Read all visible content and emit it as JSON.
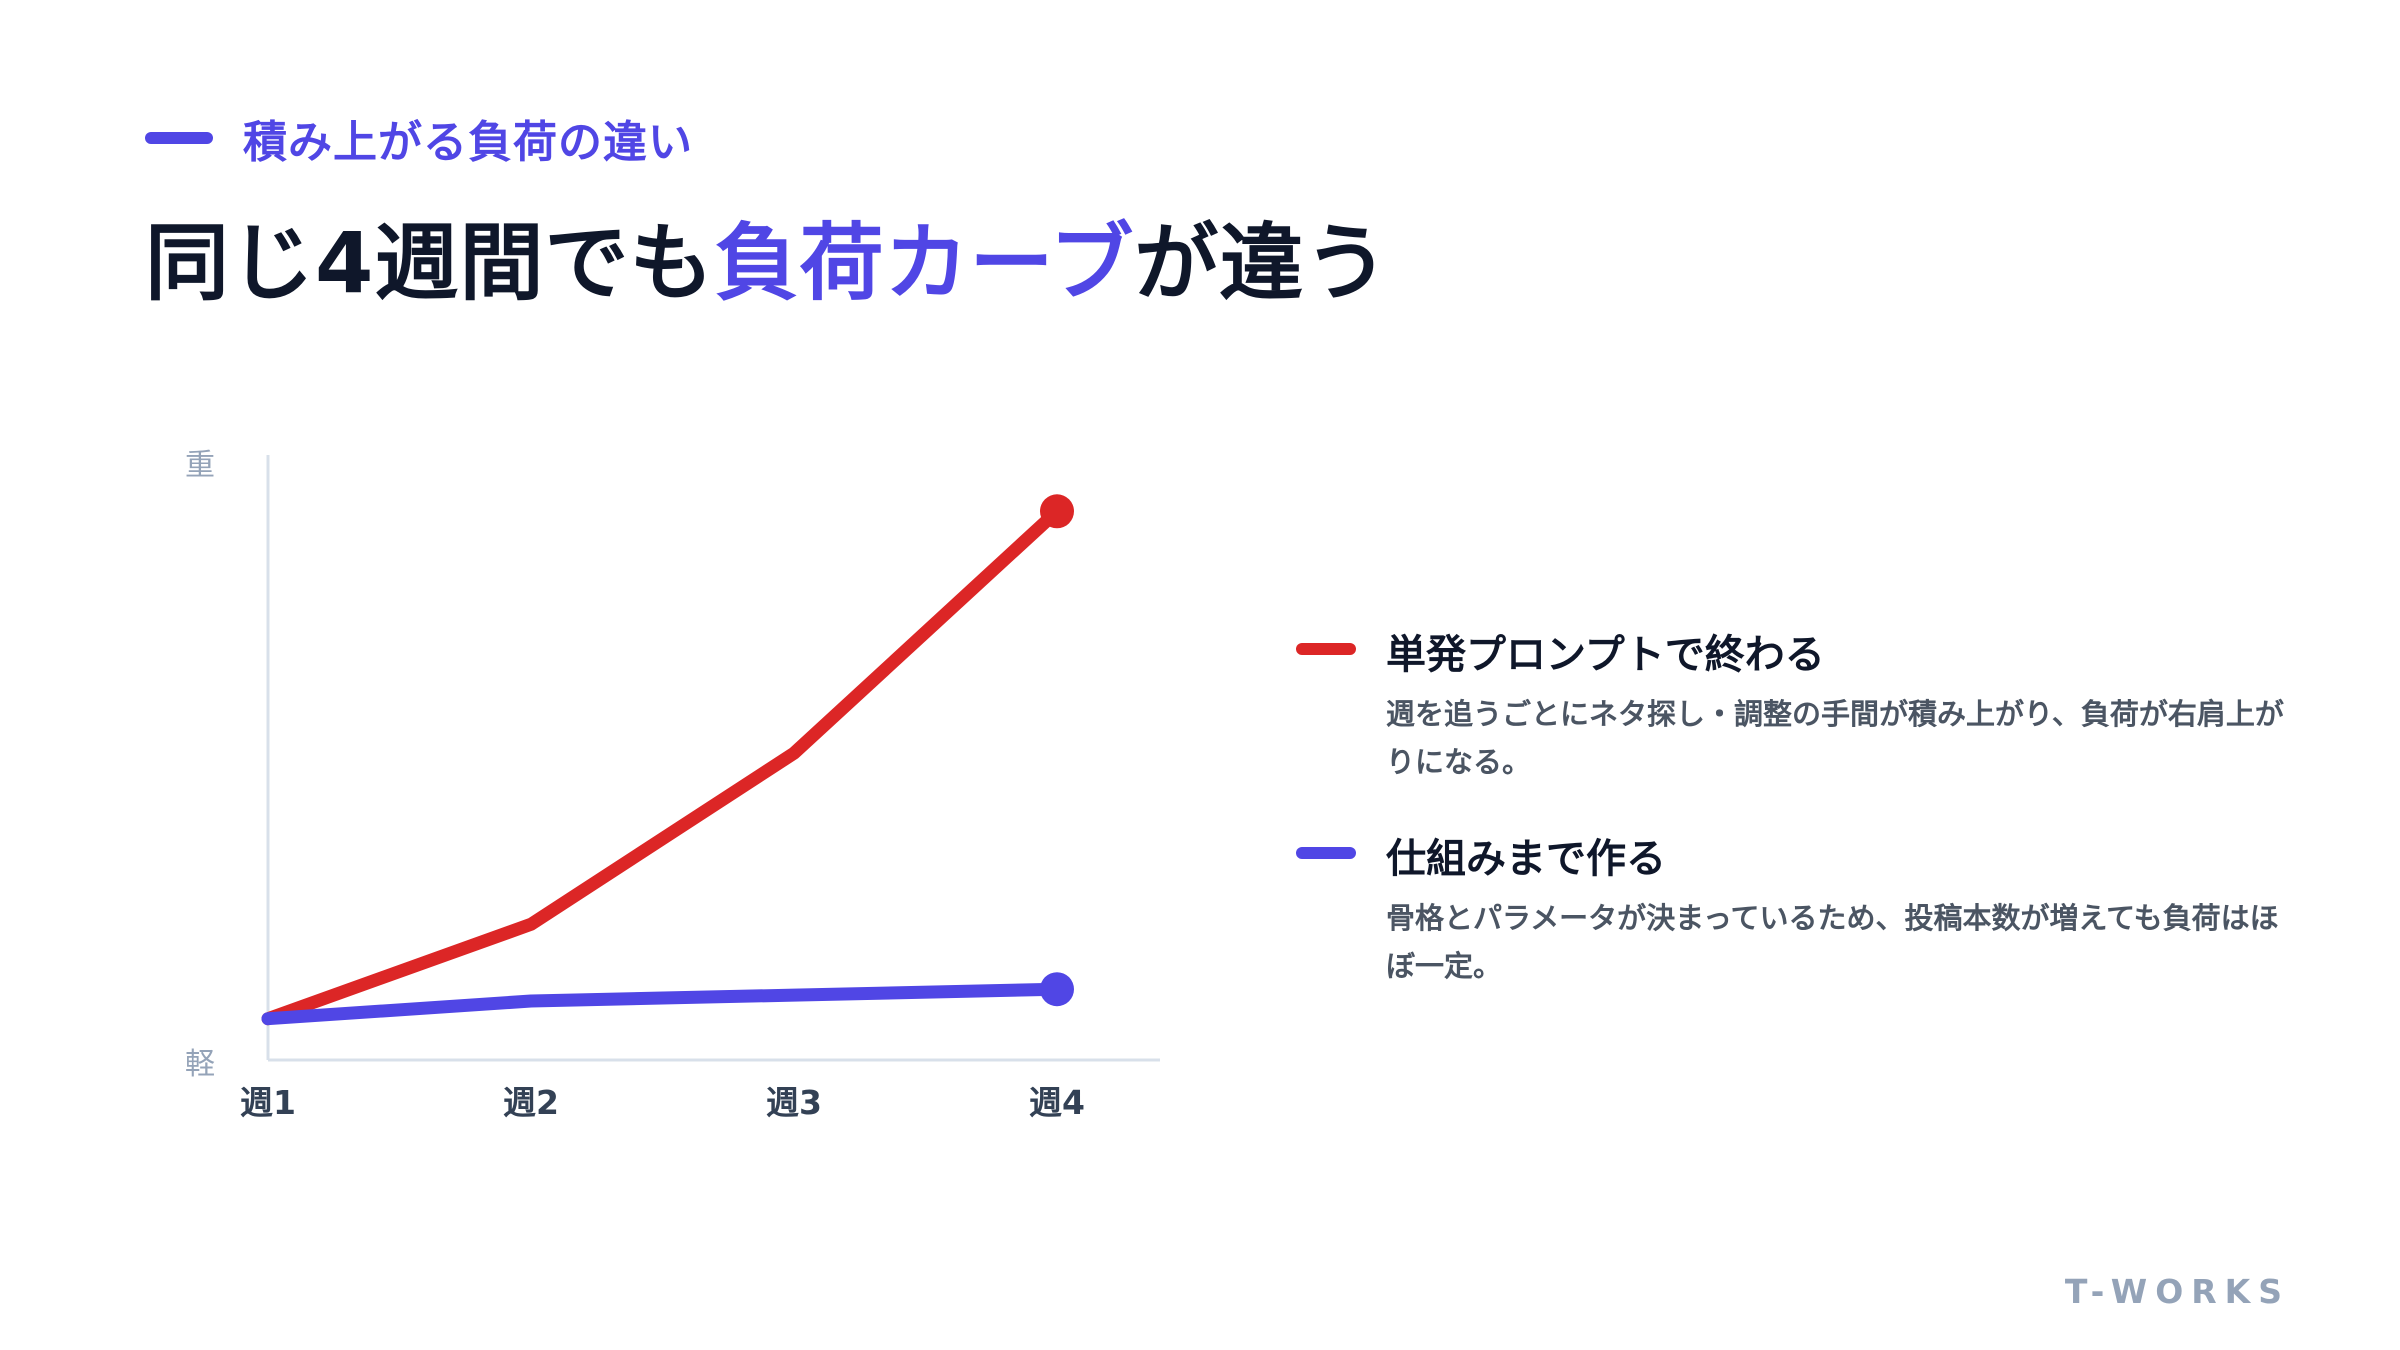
{
  "header": {
    "eyebrow": "積み上がる負荷の違い",
    "title_before": "同じ4週間でも",
    "title_highlight": "負荷カーブ",
    "title_after": "が違う"
  },
  "colors": {
    "accent": "#5046e5",
    "red_series": "#dc2626",
    "blue_series": "#5046e5",
    "axis": "#d8e0ea"
  },
  "chart_data": {
    "type": "line",
    "categories": [
      "週1",
      "週2",
      "週3",
      "週4"
    ],
    "y_top_label": "重",
    "y_bottom_label": "軽",
    "ylim": [
      0,
      100
    ],
    "grid": false,
    "legend_position": "right",
    "series": [
      {
        "name": "単発プロンプトで終わる",
        "color": "#dc2626",
        "values": [
          7,
          23,
          52,
          93
        ]
      },
      {
        "name": "仕組みまで作る",
        "color": "#5046e5",
        "values": [
          7,
          10,
          11,
          12
        ]
      }
    ]
  },
  "legend": [
    {
      "title": "単発プロンプトで終わる",
      "description": "週を追うごとにネタ探し・調整の手間が積み上がり、負荷が右肩上がりになる。",
      "color": "#dc2626"
    },
    {
      "title": "仕組みまで作る",
      "description": "骨格とパラメータが決まっているため、投稿本数が増えても負荷はほぼ一定。",
      "color": "#5046e5"
    }
  ],
  "footer": {
    "brand": "T-WORKS"
  }
}
